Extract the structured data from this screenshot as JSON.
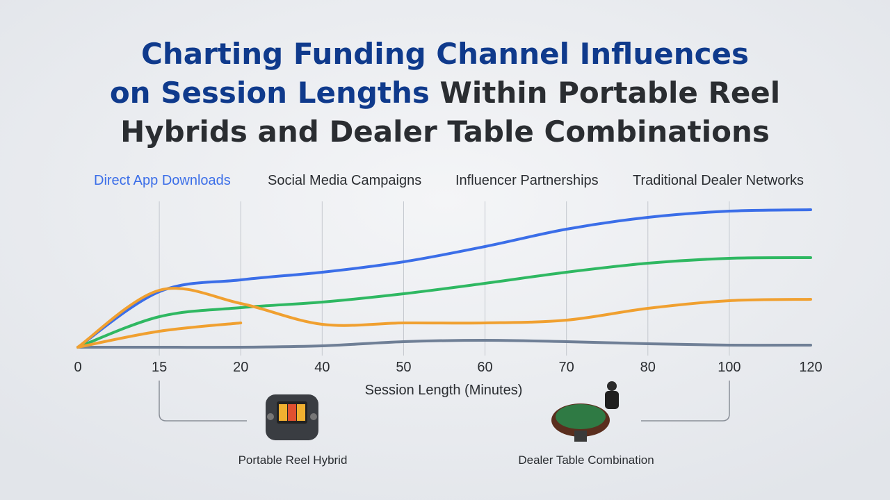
{
  "chart_data": {
    "type": "line",
    "title": [
      "Charting Funding Channel Influences",
      "on Session Lengths",
      "Within Portable Reel",
      "Hybrids and Dealer Table Combinations"
    ],
    "x_label": "Session Length (Minutes)",
    "categories": [
      "0",
      "15",
      "20",
      "40",
      "50",
      "60",
      "70",
      "80",
      "100",
      "120"
    ],
    "ylim": [
      0,
      100
    ],
    "grid": true,
    "series": [
      {
        "name": "Direct App Downloads",
        "color": "#3b6ee8",
        "values": [
          0,
          40,
          48.5,
          54,
          61.5,
          72.5,
          85,
          93.5,
          98,
          99
        ]
      },
      {
        "name": "Social Media Campaigns",
        "color": "#2fb862",
        "values": [
          0,
          22,
          28.5,
          32.5,
          38.5,
          46,
          54,
          60.5,
          64,
          64.5
        ]
      },
      {
        "name": "Influencer Partnerships",
        "color": "#f0a030",
        "values": [
          0,
          41,
          31.5,
          16.5,
          17.5,
          17.5,
          19.5,
          28,
          33.5,
          34.5
        ]
      },
      {
        "name": "Traditional Dealer Networks",
        "color": "#6f7f96",
        "values": [
          0,
          0,
          0,
          1,
          4,
          5,
          4,
          2.5,
          1.5,
          1.5
        ]
      },
      {
        "color": "#f0a030",
        "values": [
          0,
          11.5,
          17.5,
          null,
          null,
          null,
          null,
          null,
          null,
          null
        ]
      }
    ],
    "annotations": [
      "Portable Reel Hybrid",
      "Dealer Table Combination"
    ]
  }
}
